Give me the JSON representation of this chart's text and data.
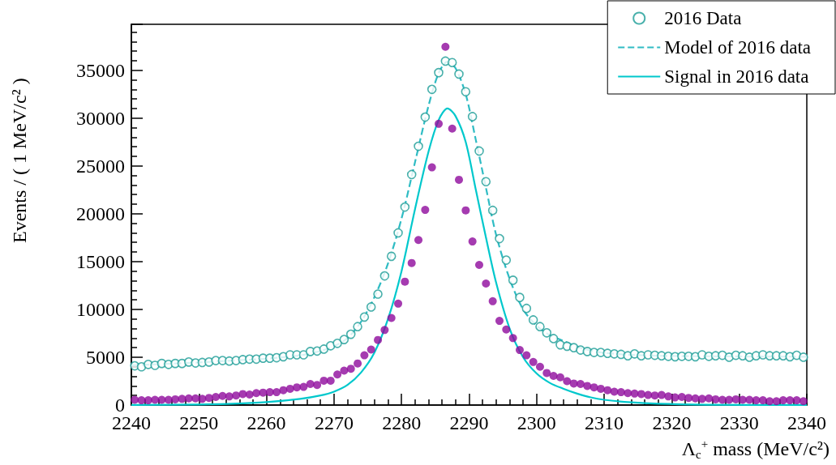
{
  "chart_data": {
    "type": "scatter",
    "xlabel": "Λ$_{c}$$^{+}$ mass (MeV/c²)",
    "ylabel": "Events / ( 1 MeV/c² )",
    "x": [
      2240.5,
      2241.5,
      2242.5,
      2243.5,
      2244.5,
      2245.5,
      2246.5,
      2247.5,
      2248.5,
      2249.5,
      2250.5,
      2251.5,
      2252.5,
      2253.5,
      2254.5,
      2255.5,
      2256.5,
      2257.5,
      2258.5,
      2259.5,
      2260.5,
      2261.5,
      2262.5,
      2263.5,
      2264.5,
      2265.5,
      2266.5,
      2267.5,
      2268.5,
      2269.5,
      2270.5,
      2271.5,
      2272.5,
      2273.5,
      2274.5,
      2275.5,
      2276.5,
      2277.5,
      2278.5,
      2279.5,
      2280.5,
      2281.5,
      2282.5,
      2283.5,
      2284.5,
      2285.5,
      2286.5,
      2287.5,
      2288.5,
      2289.5,
      2290.5,
      2291.5,
      2292.5,
      2293.5,
      2294.5,
      2295.5,
      2296.5,
      2297.5,
      2298.5,
      2299.5,
      2300.5,
      2301.5,
      2302.5,
      2303.5,
      2304.5,
      2305.5,
      2306.5,
      2307.5,
      2308.5,
      2309.5,
      2310.5,
      2311.5,
      2312.5,
      2313.5,
      2314.5,
      2315.5,
      2316.5,
      2317.5,
      2318.5,
      2319.5,
      2320.5,
      2321.5,
      2322.5,
      2323.5,
      2324.5,
      2325.5,
      2326.5,
      2327.5,
      2328.5,
      2329.5,
      2330.5,
      2331.5,
      2332.5,
      2333.5,
      2334.5,
      2335.5,
      2336.5,
      2337.5,
      2338.5,
      2339.5
    ],
    "series": [
      {
        "name": "2016 Data",
        "marker": "circle",
        "color": "#1a9c96",
        "values": [
          4100,
          4000,
          4250,
          4150,
          4350,
          4250,
          4350,
          4350,
          4500,
          4400,
          4450,
          4500,
          4650,
          4650,
          4600,
          4650,
          4750,
          4800,
          4800,
          4900,
          4900,
          4950,
          5050,
          5250,
          5250,
          5250,
          5600,
          5650,
          5850,
          6200,
          6450,
          6850,
          7400,
          8200,
          9200,
          10250,
          11600,
          13500,
          15550,
          18000,
          20700,
          24100,
          27050,
          30100,
          33000,
          34750,
          35950,
          35800,
          34600,
          32750,
          30150,
          26550,
          23350,
          20350,
          17400,
          15150,
          13050,
          11250,
          10100,
          8900,
          8200,
          7550,
          6950,
          6300,
          6150,
          6000,
          5750,
          5600,
          5500,
          5500,
          5400,
          5350,
          5300,
          5150,
          5350,
          5150,
          5250,
          5200,
          5150,
          5100,
          5050,
          5100,
          5100,
          5050,
          5250,
          5100,
          5150,
          5200,
          5000,
          5200,
          5150,
          5000,
          5150,
          5250,
          5150,
          5150,
          5150,
          5050,
          5200,
          5000
        ]
      },
      {
        "marker": "circle",
        "color": "#8e0a9c",
        "values": [
          550,
          500,
          500,
          550,
          550,
          550,
          600,
          650,
          700,
          700,
          650,
          750,
          850,
          950,
          900,
          1000,
          1150,
          1100,
          1250,
          1300,
          1350,
          1350,
          1550,
          1700,
          1850,
          1900,
          2200,
          2100,
          2550,
          2550,
          3200,
          3600,
          3800,
          4350,
          5200,
          5800,
          6800,
          7850,
          9100,
          10600,
          12900,
          14850,
          17250,
          20400,
          24850,
          29400,
          37450,
          28900,
          23550,
          20350,
          17100,
          14650,
          12700,
          10850,
          8800,
          7900,
          7000,
          5750,
          5200,
          4500,
          4000,
          3350,
          3050,
          2900,
          2500,
          2250,
          2200,
          2000,
          1850,
          1700,
          1550,
          1400,
          1350,
          1250,
          1200,
          1150,
          1050,
          1000,
          1050,
          900,
          800,
          850,
          750,
          700,
          650,
          700,
          600,
          550,
          550,
          600,
          550,
          550,
          500,
          500,
          400,
          400,
          500,
          500,
          500,
          400
        ]
      },
      {
        "name": "Model of 2016 data",
        "type": "line",
        "line_style": "dashed",
        "color": "#2fbcc4",
        "x": [
          2240,
          2245,
          2250,
          2255,
          2260,
          2265,
          2268,
          2270,
          2272,
          2274,
          2276,
          2278,
          2280,
          2282,
          2284,
          2285.5,
          2286.8,
          2288,
          2289.5,
          2291,
          2292.5,
          2294,
          2296,
          2298,
          2300,
          2302,
          2304,
          2306,
          2308,
          2310,
          2314,
          2318,
          2325,
          2340
        ],
        "values": [
          4150,
          4300,
          4450,
          4650,
          4850,
          5200,
          5650,
          6150,
          7000,
          8700,
          11300,
          14800,
          19500,
          25400,
          31300,
          34700,
          35900,
          35200,
          32500,
          27700,
          22700,
          17800,
          13200,
          10000,
          8300,
          7300,
          6700,
          6100,
          5700,
          5450,
          5250,
          5150,
          5100,
          5050
        ]
      },
      {
        "name": "Signal in 2016 data",
        "type": "line",
        "line_style": "solid",
        "color": "#00c8cc",
        "x": [
          2240,
          2250,
          2255,
          2260,
          2265,
          2268,
          2270,
          2272,
          2274,
          2276,
          2278,
          2280,
          2282,
          2284,
          2285.5,
          2286.8,
          2288,
          2289.5,
          2291,
          2292.5,
          2294,
          2296,
          2298,
          2300,
          2302,
          2304,
          2306,
          2308,
          2310,
          2314,
          2318,
          2325,
          2340
        ],
        "values": [
          10,
          60,
          130,
          300,
          640,
          1000,
          1400,
          2100,
          3400,
          5500,
          9000,
          14000,
          20500,
          26500,
          29800,
          31000,
          30200,
          27500,
          22500,
          17500,
          12800,
          8000,
          5000,
          3300,
          2300,
          1700,
          1200,
          800,
          550,
          280,
          130,
          40,
          5
        ]
      }
    ],
    "xlim": [
      2240,
      2340
    ],
    "xticks": [
      2240,
      2250,
      2260,
      2270,
      2280,
      2290,
      2300,
      2310,
      2320,
      2330,
      2340
    ],
    "ylim": [
      0,
      39800
    ],
    "yticks": [
      0,
      5000,
      10000,
      15000,
      20000,
      25000,
      30000,
      35000
    ],
    "grid": false,
    "legend": "top right"
  }
}
